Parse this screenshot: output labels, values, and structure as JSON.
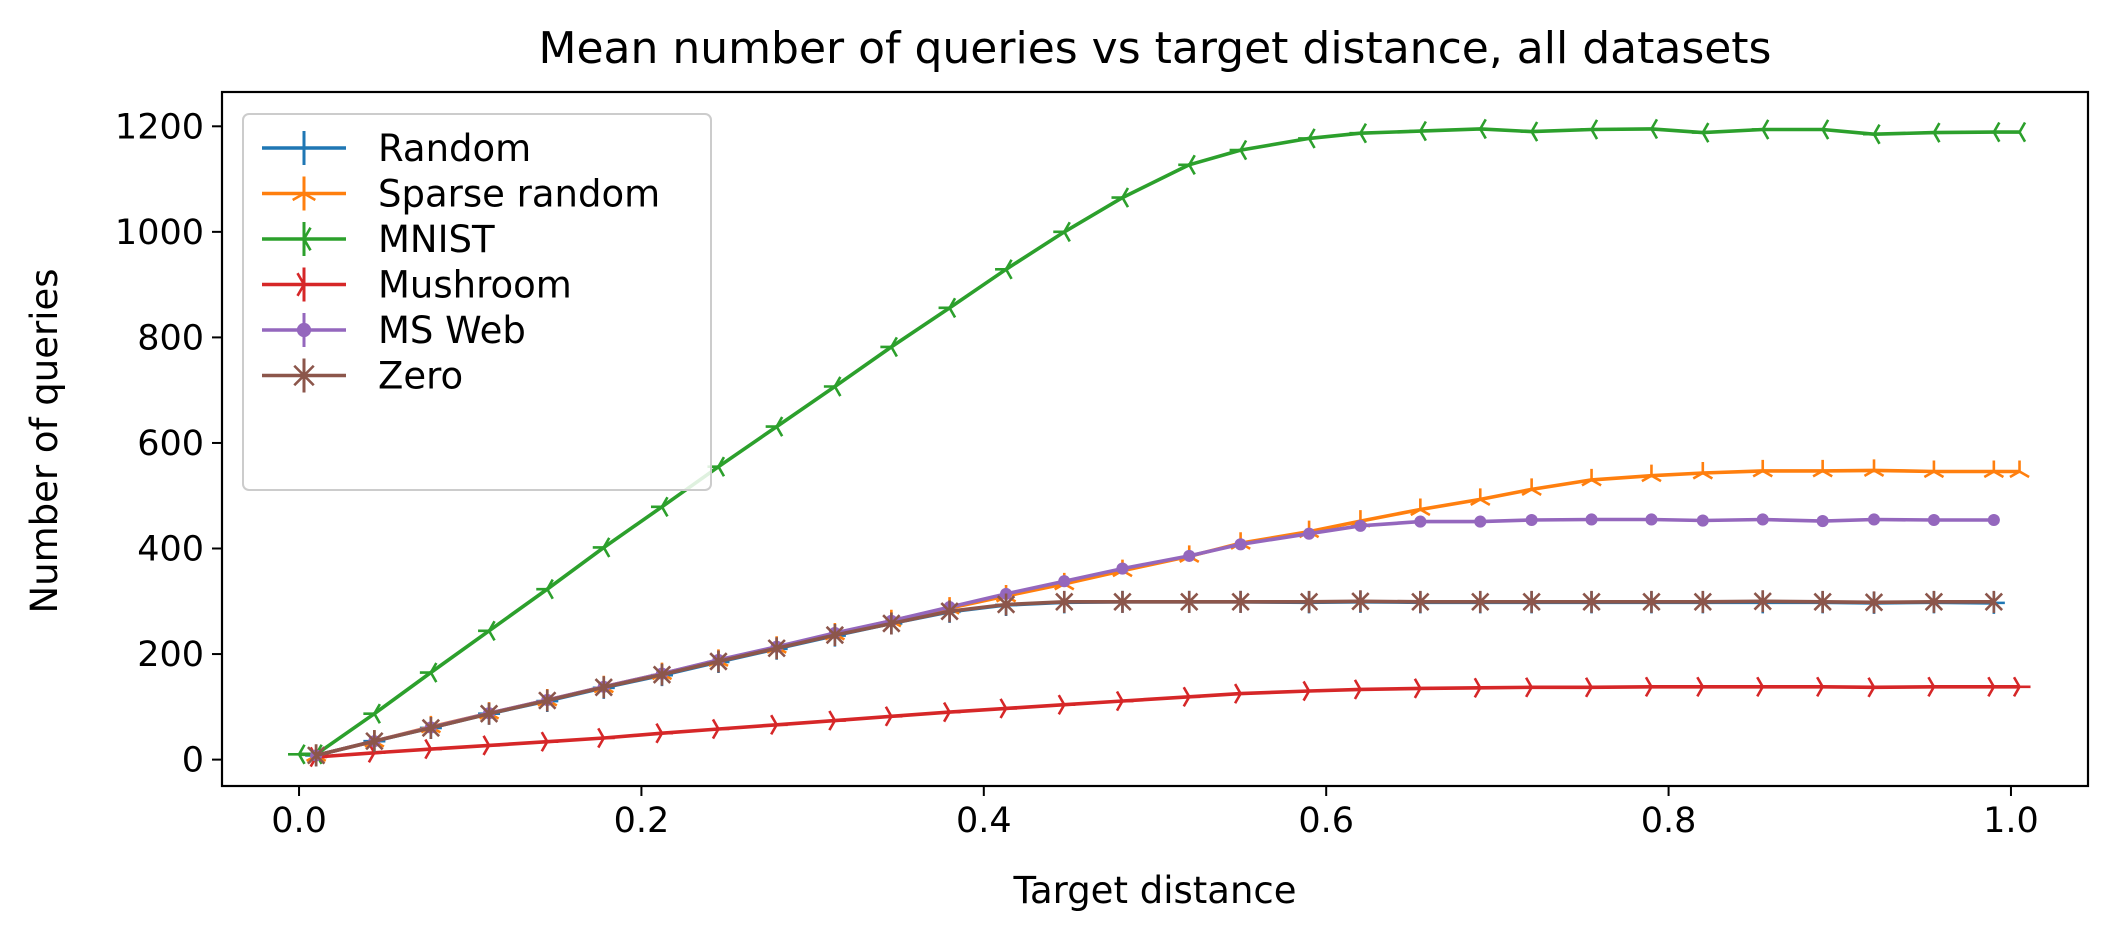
{
  "chart_data": {
    "type": "line",
    "title": "Mean number of queries vs target distance, all datasets",
    "xlabel": "Target distance",
    "ylabel": "Number of queries",
    "xlim": [
      -0.045,
      1.045
    ],
    "ylim": [
      -50,
      1265
    ],
    "xticks": [
      0.0,
      0.2,
      0.4,
      0.6,
      0.8,
      1.0
    ],
    "xtick_labels": [
      "0.0",
      "0.2",
      "0.4",
      "0.6",
      "0.8",
      "1.0"
    ],
    "yticks": [
      0,
      200,
      400,
      600,
      800,
      1000,
      1200
    ],
    "ytick_labels": [
      "0",
      "200",
      "400",
      "600",
      "800",
      "1000",
      "1200"
    ],
    "grid": false,
    "legend_position": "upper-left",
    "series": [
      {
        "name": "Random",
        "color": "#1f77b4",
        "marker": "plus",
        "x": [
          0.01,
          0.044,
          0.077,
          0.111,
          0.145,
          0.178,
          0.212,
          0.245,
          0.279,
          0.313,
          0.346,
          0.38,
          0.413,
          0.447,
          0.481,
          0.52,
          0.55,
          0.59,
          0.62,
          0.655,
          0.69,
          0.72,
          0.755,
          0.79,
          0.82,
          0.855,
          0.89,
          0.92,
          0.955,
          0.99
        ],
        "y": [
          8,
          35,
          60,
          87,
          111,
          136,
          160,
          185,
          210,
          235,
          258,
          280,
          293,
          298,
          299,
          299,
          299,
          298,
          299,
          298,
          298,
          298,
          298,
          298,
          298,
          298,
          298,
          297,
          298,
          297
        ]
      },
      {
        "name": "Sparse random",
        "color": "#ff7f0e",
        "marker": "tri-up",
        "x": [
          0.01,
          0.044,
          0.077,
          0.111,
          0.145,
          0.178,
          0.212,
          0.245,
          0.279,
          0.313,
          0.346,
          0.38,
          0.413,
          0.447,
          0.481,
          0.52,
          0.55,
          0.59,
          0.62,
          0.655,
          0.69,
          0.72,
          0.755,
          0.79,
          0.82,
          0.855,
          0.89,
          0.92,
          0.955,
          0.99,
          1.005
        ],
        "y": [
          8,
          35,
          62,
          88,
          113,
          138,
          163,
          188,
          213,
          238,
          263,
          287,
          310,
          333,
          358,
          385,
          410,
          432,
          452,
          474,
          493,
          512,
          530,
          538,
          543,
          547,
          547,
          548,
          546,
          546,
          546
        ]
      },
      {
        "name": "MNIST",
        "color": "#2ca02c",
        "marker": "tri-left",
        "x": [
          0.0,
          0.01,
          0.044,
          0.077,
          0.111,
          0.145,
          0.178,
          0.212,
          0.245,
          0.279,
          0.313,
          0.346,
          0.38,
          0.413,
          0.447,
          0.481,
          0.52,
          0.55,
          0.59,
          0.62,
          0.655,
          0.69,
          0.72,
          0.755,
          0.79,
          0.82,
          0.855,
          0.89,
          0.92,
          0.955,
          0.99,
          1.005
        ],
        "y": [
          10,
          10,
          87,
          165,
          244,
          323,
          402,
          479,
          555,
          631,
          707,
          782,
          856,
          929,
          1000,
          1065,
          1127,
          1155,
          1177,
          1187,
          1191,
          1195,
          1190,
          1194,
          1195,
          1188,
          1194,
          1194,
          1185,
          1188,
          1189,
          1189
        ]
      },
      {
        "name": "Mushroom",
        "color": "#d62728",
        "marker": "tri-right",
        "x": [
          0.01,
          0.044,
          0.077,
          0.111,
          0.145,
          0.178,
          0.212,
          0.245,
          0.279,
          0.313,
          0.346,
          0.38,
          0.413,
          0.447,
          0.481,
          0.52,
          0.55,
          0.59,
          0.62,
          0.655,
          0.69,
          0.72,
          0.755,
          0.79,
          0.82,
          0.855,
          0.89,
          0.92,
          0.955,
          0.99,
          1.005
        ],
        "y": [
          5,
          13,
          20,
          27,
          34,
          41,
          50,
          58,
          66,
          74,
          82,
          90,
          97,
          104,
          111,
          119,
          125,
          130,
          133,
          135,
          136,
          137,
          137,
          138,
          138,
          138,
          138,
          137,
          138,
          138,
          138
        ]
      },
      {
        "name": "MS Web",
        "color": "#9467bd",
        "marker": "dot",
        "x": [
          0.01,
          0.044,
          0.077,
          0.111,
          0.145,
          0.178,
          0.212,
          0.245,
          0.279,
          0.313,
          0.346,
          0.38,
          0.413,
          0.447,
          0.481,
          0.52,
          0.55,
          0.59,
          0.62,
          0.655,
          0.69,
          0.72,
          0.755,
          0.79,
          0.82,
          0.855,
          0.89,
          0.92,
          0.955,
          0.99
        ],
        "y": [
          8,
          35,
          61,
          88,
          113,
          138,
          163,
          189,
          214,
          240,
          263,
          289,
          314,
          338,
          362,
          386,
          408,
          428,
          443,
          451,
          451,
          454,
          455,
          455,
          453,
          455,
          452,
          455,
          454,
          454
        ]
      },
      {
        "name": "Zero",
        "color": "#8c564b",
        "marker": "x-star",
        "x": [
          0.01,
          0.044,
          0.077,
          0.111,
          0.145,
          0.178,
          0.212,
          0.245,
          0.279,
          0.313,
          0.346,
          0.38,
          0.413,
          0.447,
          0.481,
          0.52,
          0.55,
          0.59,
          0.62,
          0.655,
          0.69,
          0.72,
          0.755,
          0.79,
          0.82,
          0.855,
          0.89,
          0.92,
          0.955,
          0.99
        ],
        "y": [
          8,
          35,
          60,
          87,
          112,
          137,
          161,
          186,
          211,
          236,
          258,
          281,
          294,
          299,
          299,
          299,
          299,
          299,
          300,
          299,
          299,
          299,
          299,
          299,
          299,
          300,
          299,
          298,
          299,
          299
        ]
      }
    ]
  }
}
